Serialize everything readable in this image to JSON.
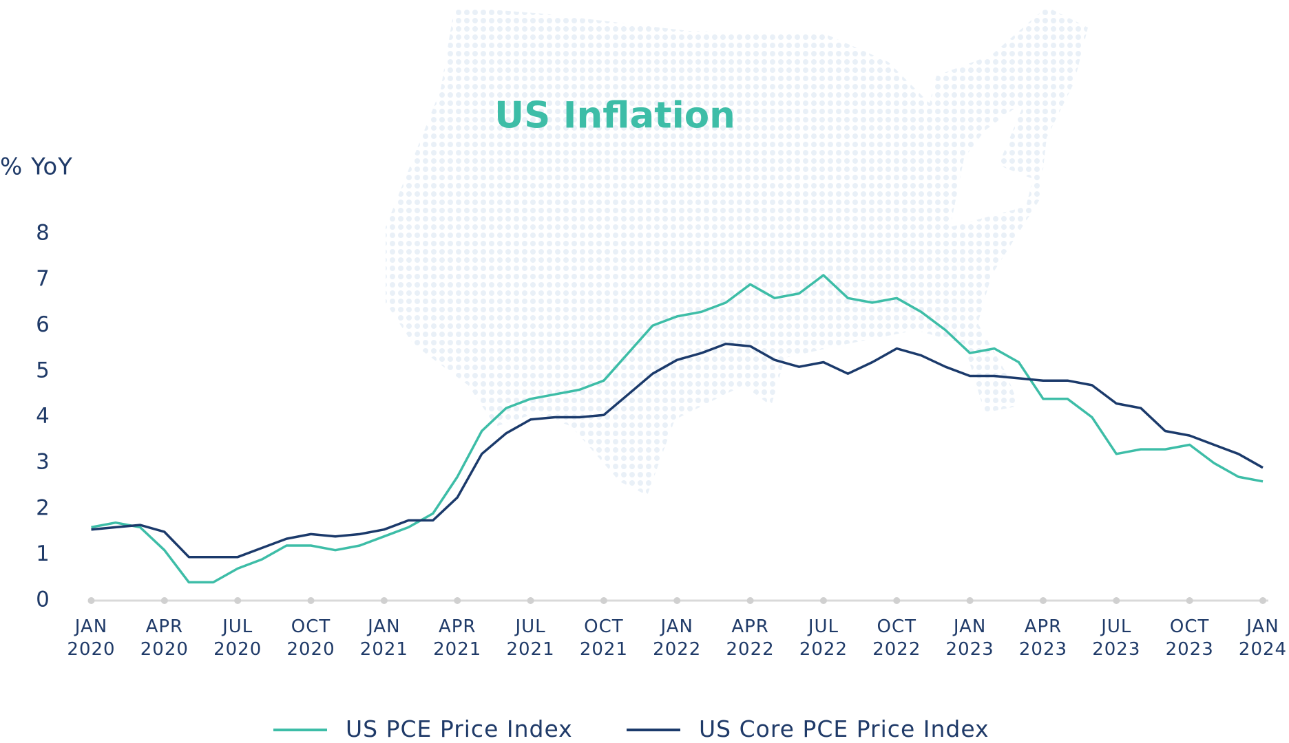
{
  "chart_data": {
    "type": "line",
    "title": "US Inflation",
    "y_label": "% YoY",
    "categories": [
      "JAN 2020",
      null,
      null,
      "APR 2020",
      null,
      null,
      "JUL 2020",
      null,
      null,
      "OCT 2020",
      null,
      null,
      "JAN 2021",
      null,
      null,
      "APR 2021",
      null,
      null,
      "JUL 2021",
      null,
      null,
      "OCT 2021",
      null,
      null,
      "JAN 2022",
      null,
      null,
      "APR 2022",
      null,
      null,
      "JUL 2022",
      null,
      null,
      "OCT 2022",
      null,
      null,
      "JAN 2023",
      null,
      null,
      "APR 2023",
      null,
      null,
      "JUL 2023",
      null,
      null,
      "OCT 2023",
      null,
      null,
      "JAN 2024"
    ],
    "series": [
      {
        "name": "US PCE Price Index",
        "color": "#3dbda7",
        "values": [
          1.6,
          1.7,
          1.6,
          1.1,
          0.4,
          0.4,
          0.7,
          0.9,
          1.2,
          1.2,
          1.1,
          1.2,
          1.4,
          1.6,
          1.9,
          2.7,
          3.7,
          4.2,
          4.4,
          4.5,
          4.6,
          4.8,
          5.4,
          6.0,
          6.2,
          6.3,
          6.5,
          6.9,
          6.6,
          6.7,
          7.1,
          6.6,
          6.5,
          6.6,
          6.3,
          5.9,
          5.4,
          5.5,
          5.2,
          4.4,
          4.4,
          4.0,
          3.2,
          3.3,
          3.3,
          3.4,
          3.0,
          2.7,
          2.6
        ]
      },
      {
        "name": "US Core PCE Price Index",
        "color": "#1b3a6b",
        "values": [
          1.55,
          1.6,
          1.65,
          1.5,
          0.95,
          0.95,
          0.95,
          1.15,
          1.35,
          1.45,
          1.4,
          1.45,
          1.55,
          1.75,
          1.75,
          2.25,
          3.2,
          3.65,
          3.95,
          4.0,
          4.0,
          4.05,
          4.5,
          4.95,
          5.25,
          5.4,
          5.6,
          5.55,
          5.25,
          5.1,
          5.2,
          4.95,
          5.2,
          5.5,
          5.35,
          5.1,
          4.9,
          4.9,
          4.85,
          4.8,
          4.8,
          4.7,
          4.3,
          4.2,
          3.7,
          3.6,
          3.4,
          3.2,
          2.9
        ]
      }
    ],
    "ylim": [
      0,
      8
    ],
    "yticks": [
      0,
      1,
      2,
      3,
      4,
      5,
      6,
      7,
      8
    ],
    "grid": false,
    "legend": "bottom"
  }
}
